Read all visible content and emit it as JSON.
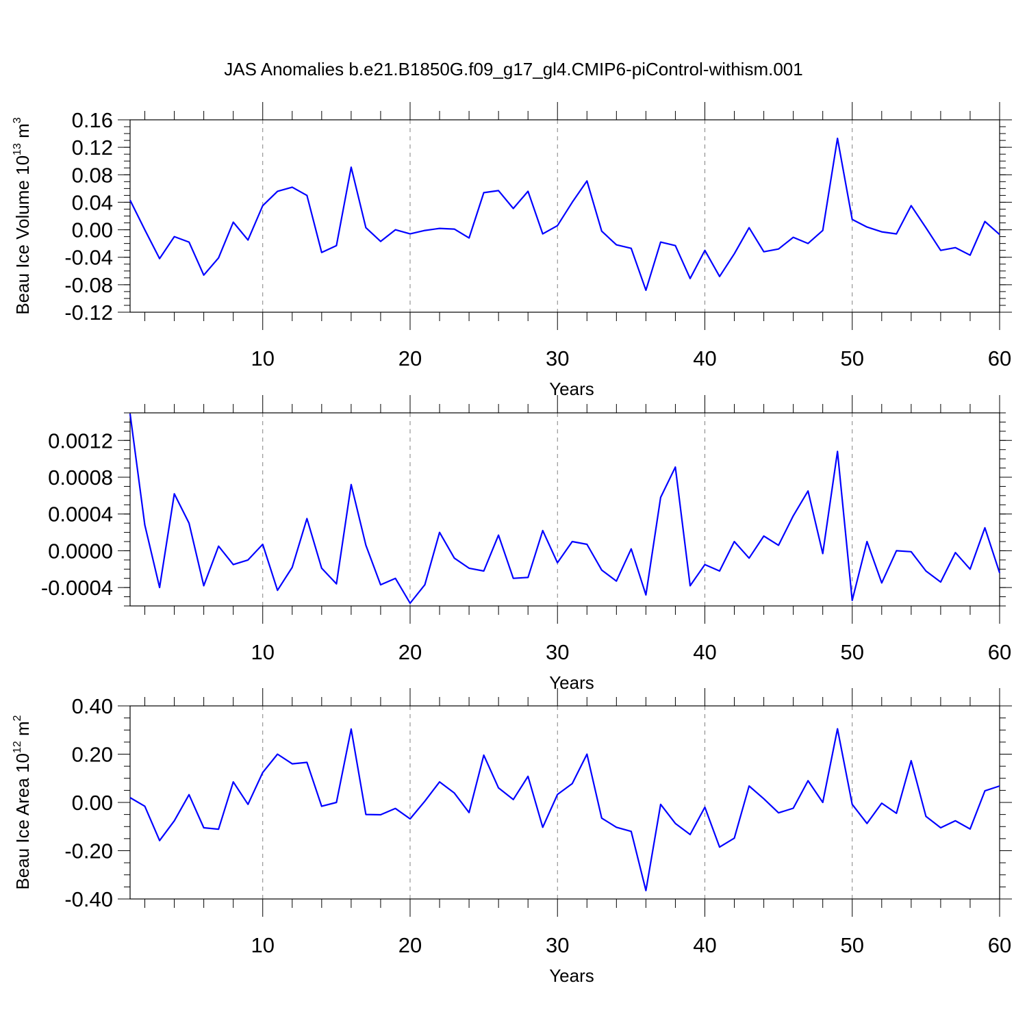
{
  "title": "JAS Anomalies b.e21.B1850G.f09_g17_gl4.CMIP6-piControl-withism.001",
  "colors": {
    "series": "#0000ff",
    "axis": "#000000",
    "grid": "#808080"
  },
  "chart_data": [
    {
      "type": "line",
      "xlabel": "Years",
      "ylabel_main": "Beau Ice Volume 10",
      "ylabel_exp": "13",
      "ylabel_unit": " m",
      "ylabel_unit_exp": "3",
      "xlim": [
        1,
        60
      ],
      "ylim": [
        -0.12,
        0.16
      ],
      "xticks": [
        10,
        20,
        30,
        40,
        50,
        60
      ],
      "yticks": [
        -0.12,
        -0.08,
        -0.04,
        0.0,
        0.04,
        0.08,
        0.12,
        0.16
      ],
      "ytick_labels": [
        "-0.12",
        "-0.08",
        "-0.04",
        "0.00",
        "0.04",
        "0.08",
        "0.12",
        "0.16"
      ],
      "grid_x": true,
      "x": [
        1,
        2,
        3,
        4,
        5,
        6,
        7,
        8,
        9,
        10,
        11,
        12,
        13,
        14,
        15,
        16,
        17,
        18,
        19,
        20,
        21,
        22,
        23,
        24,
        25,
        26,
        27,
        28,
        29,
        30,
        31,
        32,
        33,
        34,
        35,
        36,
        37,
        38,
        39,
        40,
        41,
        42,
        43,
        44,
        45,
        46,
        47,
        48,
        49,
        50,
        51,
        52,
        53,
        54,
        55,
        56,
        57,
        58,
        59,
        60
      ],
      "y": [
        0.043,
        0.0,
        -0.042,
        -0.01,
        -0.018,
        -0.066,
        -0.041,
        0.011,
        -0.015,
        0.035,
        0.056,
        0.062,
        0.05,
        -0.033,
        -0.023,
        0.091,
        0.003,
        -0.017,
        0.0,
        -0.006,
        -0.001,
        0.002,
        0.001,
        -0.012,
        0.054,
        0.057,
        0.031,
        0.056,
        -0.006,
        0.006,
        0.04,
        0.071,
        -0.002,
        -0.022,
        -0.027,
        -0.088,
        -0.018,
        -0.023,
        -0.071,
        -0.03,
        -0.068,
        -0.035,
        0.003,
        -0.032,
        -0.028,
        -0.011,
        -0.02,
        -0.001,
        0.133,
        0.015,
        0.004,
        -0.003,
        -0.006,
        0.035,
        0.003,
        -0.03,
        -0.026,
        -0.037,
        0.012,
        -0.007
      ]
    },
    {
      "type": "line",
      "xlabel": "Years",
      "ylabel_main": "",
      "ylabel_exp": "",
      "ylabel_unit": "",
      "ylabel_unit_exp": "",
      "xlim": [
        1,
        60
      ],
      "ylim": [
        -0.0006,
        0.0015
      ],
      "xticks": [
        10,
        20,
        30,
        40,
        50,
        60
      ],
      "yticks": [
        -0.0004,
        0.0,
        0.0004,
        0.0008,
        0.0012
      ],
      "ytick_labels": [
        "-0.0004",
        "0.0000",
        "0.0004",
        "0.0008",
        "0.0012"
      ],
      "grid_x": true,
      "x": [
        1,
        2,
        3,
        4,
        5,
        6,
        7,
        8,
        9,
        10,
        11,
        12,
        13,
        14,
        15,
        16,
        17,
        18,
        19,
        20,
        21,
        22,
        23,
        24,
        25,
        26,
        27,
        28,
        29,
        30,
        31,
        32,
        33,
        34,
        35,
        36,
        37,
        38,
        39,
        40,
        41,
        42,
        43,
        44,
        45,
        46,
        47,
        48,
        49,
        50,
        51,
        52,
        53,
        54,
        55,
        56,
        57,
        58,
        59,
        60
      ],
      "y": [
        0.00149,
        0.00028,
        -0.0004,
        0.00062,
        0.0003,
        -0.00038,
        5e-05,
        -0.00015,
        -0.0001,
        7e-05,
        -0.00043,
        -0.00018,
        0.00035,
        -0.00019,
        -0.00036,
        0.00072,
        6e-05,
        -0.00037,
        -0.0003,
        -0.00057,
        -0.00037,
        0.0002,
        -8e-05,
        -0.00019,
        -0.00022,
        0.00017,
        -0.0003,
        -0.00029,
        0.00022,
        -0.00013,
        0.0001,
        7e-05,
        -0.00021,
        -0.00033,
        2e-05,
        -0.00048,
        0.00058,
        0.00091,
        -0.00038,
        -0.00015,
        -0.00022,
        0.0001,
        -8e-05,
        0.00016,
        6e-05,
        0.00038,
        0.00065,
        -3e-05,
        0.00108,
        -0.00054,
        0.0001,
        -0.00035,
        0.0,
        -1e-05,
        -0.00022,
        -0.00034,
        -2e-05,
        -0.0002,
        0.00025,
        -0.00024
      ]
    },
    {
      "type": "line",
      "xlabel": "Years",
      "ylabel_main": "Beau Ice Area 10",
      "ylabel_exp": "12",
      "ylabel_unit": " m",
      "ylabel_unit_exp": "2",
      "xlim": [
        1,
        60
      ],
      "ylim": [
        -0.4,
        0.4
      ],
      "xticks": [
        10,
        20,
        30,
        40,
        50,
        60
      ],
      "yticks": [
        -0.4,
        -0.2,
        0.0,
        0.2,
        0.4
      ],
      "ytick_labels": [
        "-0.40",
        "-0.20",
        "0.00",
        "0.20",
        "0.40"
      ],
      "grid_x": true,
      "x": [
        1,
        2,
        3,
        4,
        5,
        6,
        7,
        8,
        9,
        10,
        11,
        12,
        13,
        14,
        15,
        16,
        17,
        18,
        19,
        20,
        21,
        22,
        23,
        24,
        25,
        26,
        27,
        28,
        29,
        30,
        31,
        32,
        33,
        34,
        35,
        36,
        37,
        38,
        39,
        40,
        41,
        42,
        43,
        44,
        45,
        46,
        47,
        48,
        49,
        50,
        51,
        52,
        53,
        54,
        55,
        56,
        57,
        58,
        59,
        60
      ],
      "y": [
        0.02,
        -0.016,
        -0.158,
        -0.076,
        0.032,
        -0.105,
        -0.111,
        0.085,
        -0.008,
        0.124,
        0.2,
        0.16,
        0.166,
        -0.016,
        0.0,
        0.304,
        -0.05,
        -0.051,
        -0.025,
        -0.068,
        0.005,
        0.085,
        0.039,
        -0.042,
        0.196,
        0.06,
        0.012,
        0.108,
        -0.103,
        0.033,
        0.078,
        0.2,
        -0.065,
        -0.103,
        -0.12,
        -0.365,
        -0.008,
        -0.087,
        -0.133,
        -0.02,
        -0.185,
        -0.148,
        0.068,
        0.015,
        -0.043,
        -0.024,
        0.09,
        0.0,
        0.305,
        -0.008,
        -0.087,
        -0.003,
        -0.045,
        0.173,
        -0.058,
        -0.105,
        -0.076,
        -0.11,
        0.048,
        0.068
      ]
    }
  ]
}
